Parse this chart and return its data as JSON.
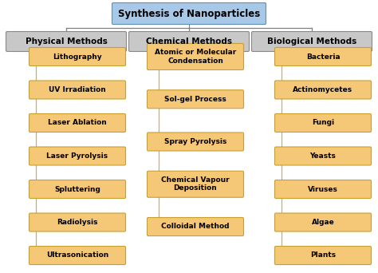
{
  "title": "Synthesis of Nanoparticles",
  "title_box_color": "#a8c8e8",
  "title_box_edge": "#6090b0",
  "category_box_color": "#c8c8c8",
  "category_box_edge": "#888888",
  "item_box_color": "#f5c878",
  "item_box_edge": "#c8a030",
  "bg_color": "#ffffff",
  "categories": [
    "Physical Methods",
    "Chemical Methods",
    "Biological Methods"
  ],
  "physical_methods": [
    "Lithography",
    "UV Irradiation",
    "Laser Ablation",
    "Laser Pyrolysis",
    "Spluttering",
    "Radiolysis",
    "Ultrasonication"
  ],
  "chemical_methods": [
    "Atomic or Molecular\nCondensation",
    "Sol-gel Process",
    "Spray Pyrolysis",
    "Chemical Vapour\nDeposition",
    "Colloidal Method"
  ],
  "biological_methods": [
    "Bacteria",
    "Actinomycetes",
    "Fungi",
    "Yeasts",
    "Viruses",
    "Algae",
    "Plants"
  ],
  "line_color": "#c8b060",
  "title_font_size": 8.5,
  "category_font_size": 7.5,
  "item_font_size": 6.5
}
